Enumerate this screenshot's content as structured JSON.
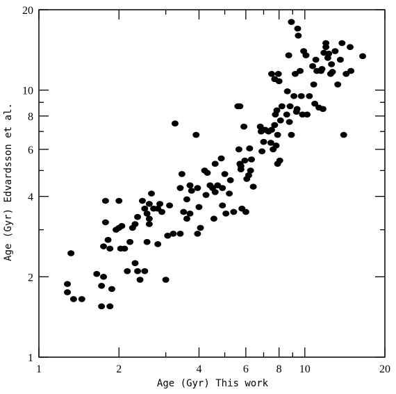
{
  "chart_data": {
    "type": "scatter",
    "title": "",
    "xlabel": "Age (Gyr) This work",
    "ylabel": "Age (Gyr) Edvardsson et al.",
    "xscale": "log",
    "yscale": "log",
    "xlim": [
      1,
      20
    ],
    "ylim": [
      1,
      20
    ],
    "x_tick_labels": [
      "1",
      "2",
      "4",
      "6",
      "8",
      "10",
      "20"
    ],
    "y_tick_labels": [
      "1",
      "2",
      "4",
      "6",
      "8",
      "10",
      "20"
    ],
    "grid": false,
    "legend": "none",
    "marker_color": "#000000",
    "series": [
      {
        "points": [
          [
            1.28,
            1.88
          ],
          [
            1.28,
            1.75
          ],
          [
            1.32,
            2.45
          ],
          [
            1.35,
            1.65
          ],
          [
            1.45,
            1.65
          ],
          [
            1.65,
            2.05
          ],
          [
            1.72,
            1.55
          ],
          [
            1.72,
            1.85
          ],
          [
            1.75,
            2.0
          ],
          [
            1.75,
            2.6
          ],
          [
            1.78,
            3.85
          ],
          [
            1.78,
            3.2
          ],
          [
            1.82,
            2.75
          ],
          [
            1.85,
            2.55
          ],
          [
            1.85,
            1.55
          ],
          [
            1.88,
            1.8
          ],
          [
            1.95,
            3.0
          ],
          [
            2.0,
            3.05
          ],
          [
            2.0,
            3.85
          ],
          [
            2.03,
            2.55
          ],
          [
            2.05,
            3.1
          ],
          [
            2.1,
            2.55
          ],
          [
            2.15,
            2.1
          ],
          [
            2.2,
            2.7
          ],
          [
            2.25,
            3.05
          ],
          [
            2.3,
            3.15
          ],
          [
            2.3,
            2.25
          ],
          [
            2.35,
            3.35
          ],
          [
            2.35,
            2.1
          ],
          [
            2.4,
            1.95
          ],
          [
            2.45,
            3.85
          ],
          [
            2.5,
            3.6
          ],
          [
            2.5,
            2.1
          ],
          [
            2.55,
            3.45
          ],
          [
            2.55,
            2.7
          ],
          [
            2.6,
            3.75
          ],
          [
            2.6,
            3.3
          ],
          [
            2.6,
            3.15
          ],
          [
            2.65,
            4.1
          ],
          [
            2.7,
            3.6
          ],
          [
            2.8,
            2.65
          ],
          [
            2.8,
            3.6
          ],
          [
            2.85,
            3.75
          ],
          [
            2.9,
            3.5
          ],
          [
            3.0,
            1.95
          ],
          [
            3.05,
            2.85
          ],
          [
            3.1,
            3.7
          ],
          [
            3.2,
            2.9
          ],
          [
            3.25,
            7.5
          ],
          [
            3.4,
            2.9
          ],
          [
            3.4,
            4.3
          ],
          [
            3.45,
            4.85
          ],
          [
            3.5,
            3.5
          ],
          [
            3.6,
            3.9
          ],
          [
            3.6,
            3.3
          ],
          [
            3.7,
            4.4
          ],
          [
            3.7,
            3.45
          ],
          [
            3.75,
            4.2
          ],
          [
            3.9,
            6.8
          ],
          [
            3.95,
            4.3
          ],
          [
            3.95,
            2.9
          ],
          [
            4.0,
            3.65
          ],
          [
            4.05,
            3.05
          ],
          [
            4.2,
            5.0
          ],
          [
            4.25,
            4.05
          ],
          [
            4.3,
            4.9
          ],
          [
            4.4,
            4.4
          ],
          [
            4.5,
            4.3
          ],
          [
            4.55,
            3.3
          ],
          [
            4.6,
            5.3
          ],
          [
            4.6,
            4.15
          ],
          [
            4.7,
            4.4
          ],
          [
            4.85,
            5.55
          ],
          [
            4.9,
            3.7
          ],
          [
            4.9,
            4.3
          ],
          [
            5.0,
            4.85
          ],
          [
            5.05,
            3.45
          ],
          [
            5.2,
            4.1
          ],
          [
            5.25,
            4.6
          ],
          [
            5.4,
            3.5
          ],
          [
            5.6,
            8.7
          ],
          [
            5.65,
            6.0
          ],
          [
            5.7,
            5.3
          ],
          [
            5.7,
            8.7
          ],
          [
            5.75,
            5.2
          ],
          [
            5.75,
            5.05
          ],
          [
            5.8,
            3.6
          ],
          [
            5.9,
            7.3
          ],
          [
            5.95,
            5.45
          ],
          [
            6.0,
            3.5
          ],
          [
            6.05,
            4.65
          ],
          [
            6.15,
            4.8
          ],
          [
            6.2,
            6.05
          ],
          [
            6.25,
            5.0
          ],
          [
            6.3,
            5.5
          ],
          [
            6.4,
            4.35
          ],
          [
            6.8,
            7.3
          ],
          [
            6.85,
            7.0
          ],
          [
            6.9,
            5.9
          ],
          [
            6.95,
            7.1
          ],
          [
            7.0,
            6.4
          ],
          [
            7.1,
            7.1
          ],
          [
            7.3,
            7.0
          ],
          [
            7.45,
            6.35
          ],
          [
            7.5,
            11.5
          ],
          [
            7.5,
            7.1
          ],
          [
            7.6,
            6.0
          ],
          [
            7.7,
            11.0
          ],
          [
            7.7,
            7.4
          ],
          [
            7.75,
            8.1
          ],
          [
            7.8,
            6.2
          ],
          [
            7.85,
            8.4
          ],
          [
            7.9,
            6.8
          ],
          [
            7.9,
            5.3
          ],
          [
            7.95,
            11.5
          ],
          [
            8.0,
            10.8
          ],
          [
            8.05,
            5.45
          ],
          [
            8.1,
            7.7
          ],
          [
            8.2,
            8.7
          ],
          [
            8.55,
            8.1
          ],
          [
            8.6,
            9.9
          ],
          [
            8.7,
            13.5
          ],
          [
            8.75,
            7.6
          ],
          [
            8.8,
            8.7
          ],
          [
            8.9,
            6.8
          ],
          [
            8.9,
            18.0
          ],
          [
            9.1,
            9.5
          ],
          [
            9.2,
            11.5
          ],
          [
            9.3,
            8.3
          ],
          [
            9.35,
            8.5
          ],
          [
            9.4,
            17.0
          ],
          [
            9.45,
            16.0
          ],
          [
            9.6,
            11.8
          ],
          [
            9.7,
            9.5
          ],
          [
            9.8,
            8.1
          ],
          [
            9.9,
            14.0
          ],
          [
            10.1,
            13.5
          ],
          [
            10.2,
            8.1
          ],
          [
            10.4,
            9.5
          ],
          [
            10.7,
            12.3
          ],
          [
            10.8,
            10.5
          ],
          [
            10.9,
            8.9
          ],
          [
            11.0,
            13.0
          ],
          [
            11.1,
            11.8
          ],
          [
            11.3,
            8.6
          ],
          [
            11.5,
            11.8
          ],
          [
            11.6,
            12.0
          ],
          [
            11.7,
            8.5
          ],
          [
            11.8,
            13.8
          ],
          [
            12.0,
            15.0
          ],
          [
            12.0,
            14.5
          ],
          [
            12.2,
            13.2
          ],
          [
            12.3,
            13.7
          ],
          [
            12.5,
            11.5
          ],
          [
            12.6,
            12.5
          ],
          [
            12.7,
            11.7
          ],
          [
            13.0,
            14.0
          ],
          [
            13.3,
            10.5
          ],
          [
            13.6,
            13.0
          ],
          [
            13.8,
            15.0
          ],
          [
            14.0,
            6.8
          ],
          [
            14.3,
            11.5
          ],
          [
            14.8,
            14.5
          ],
          [
            14.9,
            11.8
          ],
          [
            16.5,
            13.4
          ]
        ]
      }
    ]
  }
}
